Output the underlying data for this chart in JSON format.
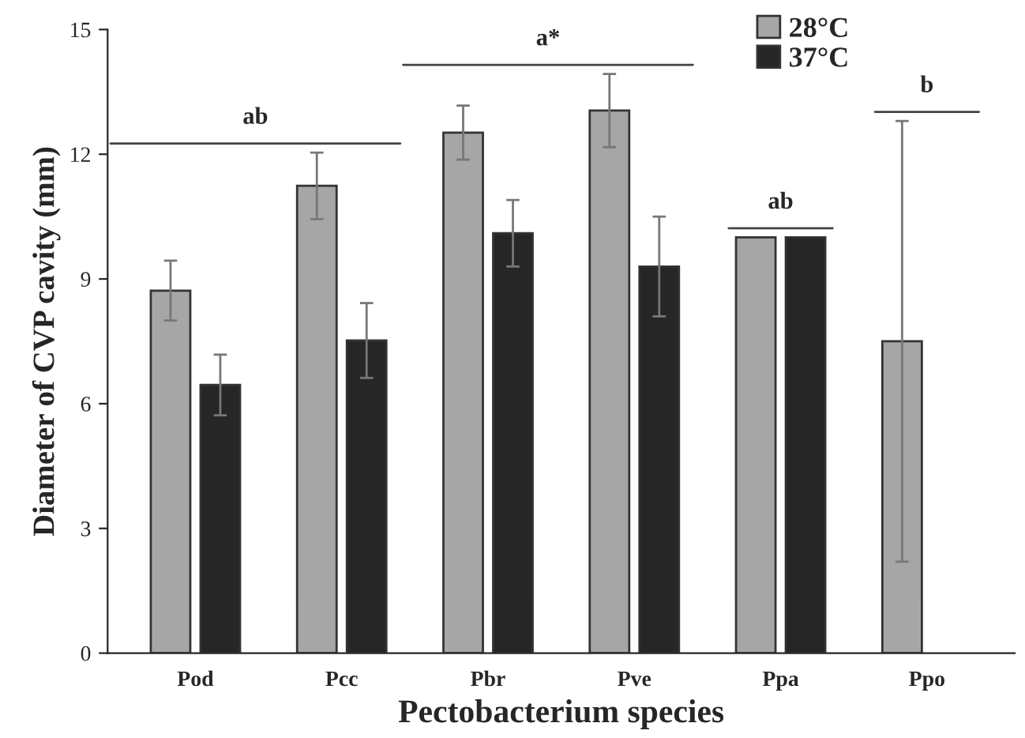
{
  "chart_data": {
    "type": "bar",
    "categories": [
      "Pod",
      "Pcc",
      "Pbr",
      "Pve",
      "Ppa",
      "Ppo"
    ],
    "series": [
      {
        "name": "28°C",
        "color": "#a6a6a6",
        "values": [
          8.72,
          11.24,
          12.52,
          13.05,
          10.0,
          7.5
        ],
        "errors": [
          0.72,
          0.8,
          0.65,
          0.88,
          null,
          5.3
        ]
      },
      {
        "name": "37°C",
        "color": "#262626",
        "values": [
          6.45,
          7.52,
          10.1,
          9.3,
          10.0,
          null
        ],
        "errors": [
          0.73,
          0.9,
          0.8,
          1.2,
          null,
          null
        ]
      }
    ],
    "xlabel": "Pectobacterium species",
    "ylabel": "Diameter of CVP cavity (mm)",
    "ylim": [
      0,
      15
    ],
    "yticks": [
      0,
      3,
      6,
      9,
      12,
      15
    ],
    "annotations": [
      "ab",
      "a*",
      "ab",
      "b"
    ],
    "legend": "top right",
    "grid": false
  }
}
